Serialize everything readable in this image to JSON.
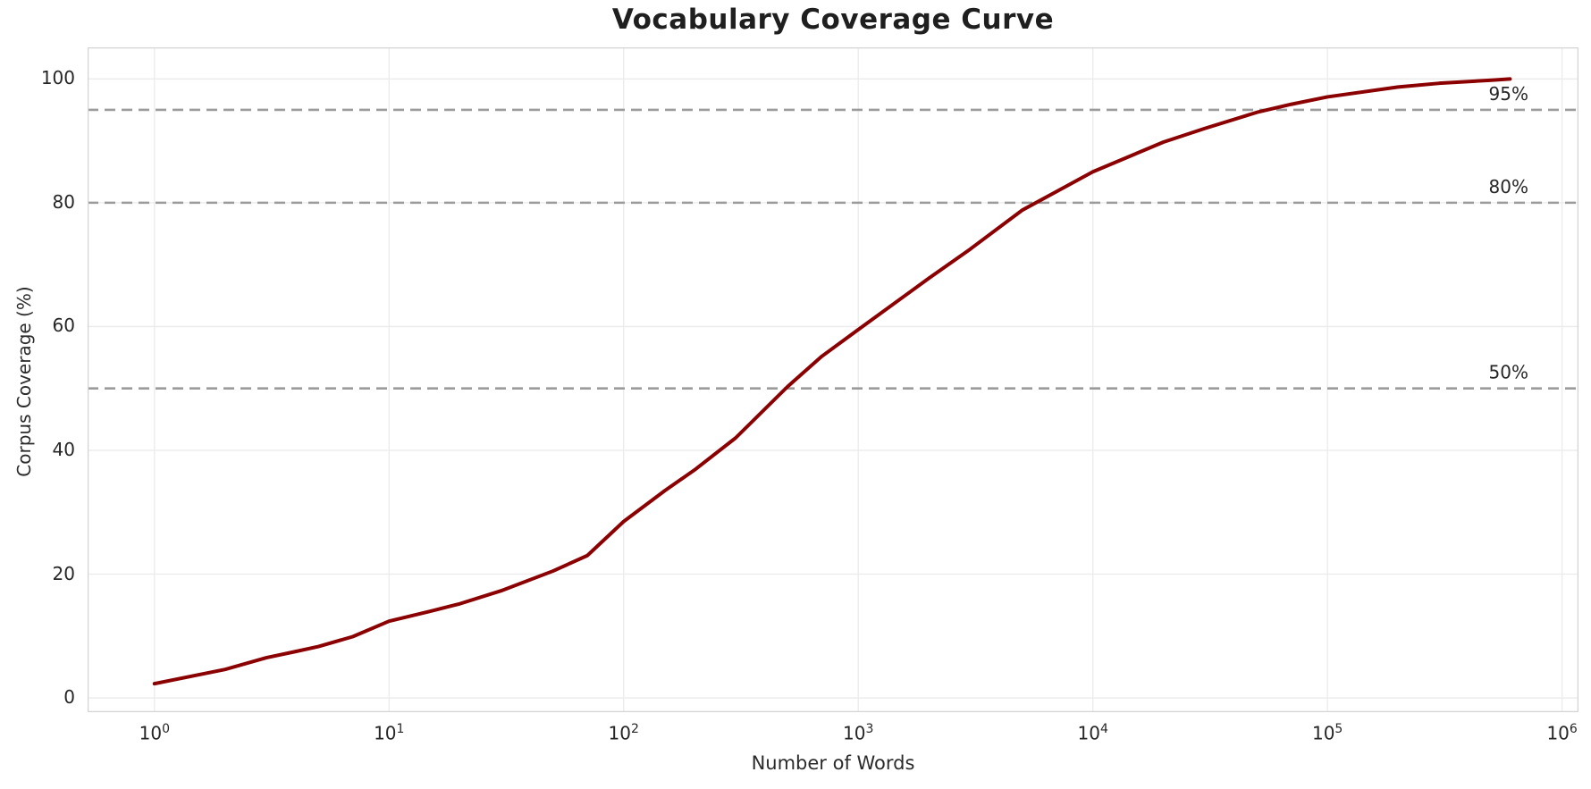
{
  "figure": {
    "title": "Vocabulary Coverage Curve"
  },
  "chart_data": {
    "type": "line",
    "title": "Vocabulary Coverage Curve",
    "xlabel": "Number of Words",
    "ylabel": "Corpus Coverage (%)",
    "x_scale": "log",
    "grid": true,
    "legend": "none",
    "xlim_log10": [
      -0.285,
      6.07
    ],
    "ylim": [
      -2.3,
      105.1
    ],
    "x_ticks": [
      {
        "label": "10^0",
        "value": 1
      },
      {
        "label": "10^1",
        "value": 10
      },
      {
        "label": "10^2",
        "value": 100
      },
      {
        "label": "10^3",
        "value": 1000
      },
      {
        "label": "10^4",
        "value": 10000
      },
      {
        "label": "10^5",
        "value": 100000
      },
      {
        "label": "10^6",
        "value": 1000000
      }
    ],
    "y_ticks": [
      0,
      20,
      40,
      60,
      80,
      100
    ],
    "series": [
      {
        "name": "coverage",
        "points": [
          [
            1,
            2.3
          ],
          [
            2,
            4.6
          ],
          [
            3,
            6.5
          ],
          [
            4,
            7.5
          ],
          [
            5,
            8.3
          ],
          [
            7,
            9.9
          ],
          [
            10,
            12.4
          ],
          [
            15,
            14.0
          ],
          [
            20,
            15.2
          ],
          [
            30,
            17.3
          ],
          [
            50,
            20.5
          ],
          [
            70,
            23.0
          ],
          [
            100,
            28.5
          ],
          [
            150,
            33.5
          ],
          [
            200,
            36.8
          ],
          [
            300,
            42.0
          ],
          [
            500,
            50.3
          ],
          [
            700,
            55.2
          ],
          [
            1000,
            59.5
          ],
          [
            2000,
            67.8
          ],
          [
            3000,
            72.5
          ],
          [
            5000,
            78.8
          ],
          [
            7000,
            81.8
          ],
          [
            10000,
            85.0
          ],
          [
            20000,
            89.8
          ],
          [
            30000,
            92.0
          ],
          [
            50000,
            94.6
          ],
          [
            70000,
            95.9
          ],
          [
            100000,
            97.1
          ],
          [
            200000,
            98.7
          ],
          [
            300000,
            99.3
          ],
          [
            500000,
            99.8
          ],
          [
            600000,
            100.0
          ]
        ]
      }
    ],
    "reference_lines": [
      {
        "value": 50,
        "label": "50%"
      },
      {
        "value": 80,
        "label": "80%"
      },
      {
        "value": 95,
        "label": "95%"
      }
    ],
    "colors": {
      "line": "#8b0000",
      "reference": "#9b9b9b",
      "grid": "#ebebeb",
      "border": "#d4d4d4",
      "text": "#262626",
      "background": "#ffffff"
    },
    "line_width": 4,
    "reference_dash": [
      12,
      7
    ]
  }
}
